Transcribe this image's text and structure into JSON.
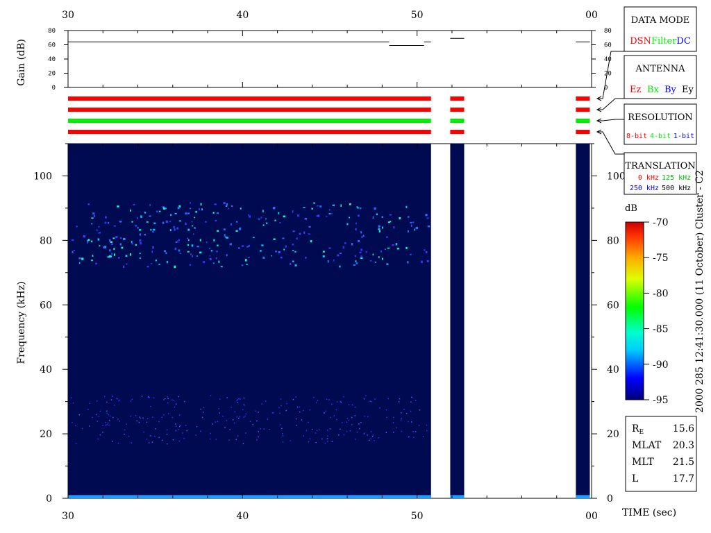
{
  "time_axis": {
    "ticks": [
      "30",
      "40",
      "50",
      "00"
    ],
    "label": "TIME (sec)"
  },
  "gain_panel": {
    "ylabel": "Gain (dB)",
    "ticks": [
      "0",
      "20",
      "40",
      "60",
      "80"
    ]
  },
  "legend": {
    "data_mode": {
      "title": "DATA MODE",
      "items": [
        {
          "label": "DSN",
          "color": "#ff0000"
        },
        {
          "label": "Filter",
          "color": "#00ee00"
        },
        {
          "label": "DC",
          "color": "#0000ff"
        }
      ]
    },
    "antenna": {
      "title": "ANTENNA",
      "items": [
        {
          "label": "Ez",
          "color": "#ff0000"
        },
        {
          "label": "Bx",
          "color": "#00ee00"
        },
        {
          "label": "By",
          "color": "#0000ff"
        },
        {
          "label": "Ey",
          "color": "#000000"
        }
      ]
    },
    "resolution": {
      "title": "RESOLUTION",
      "items": [
        {
          "label": "8-bit",
          "color": "#ff0000"
        },
        {
          "label": "4-bit",
          "color": "#00ee00"
        },
        {
          "label": "1-bit",
          "color": "#0000ff"
        }
      ]
    },
    "translation": {
      "title": "TRANSLATION",
      "items": [
        {
          "label": "0 kHz",
          "color": "#ff0000"
        },
        {
          "label": "125 kHz",
          "color": "#00ee00"
        },
        {
          "label": "250 kHz",
          "color": "#0000ff"
        },
        {
          "label": "500 kHz",
          "color": "#000000"
        }
      ]
    }
  },
  "spectrogram": {
    "ylabel": "Frequency (kHz)",
    "yticks": [
      "0",
      "20",
      "40",
      "60",
      "80",
      "100"
    ],
    "background": "#000a50"
  },
  "colorbar": {
    "unit": "dB",
    "ticks": [
      "-70",
      "-75",
      "-80",
      "-85",
      "-90",
      "-95"
    ]
  },
  "side_label": "2000 285 12:41:30.000 (11 October)  Cluster - C2",
  "orbit_info": [
    {
      "name": "R",
      "sub": "E",
      "value": "15.6"
    },
    {
      "name": "MLAT",
      "sub": "",
      "value": "20.3"
    },
    {
      "name": "MLT",
      "sub": "",
      "value": "21.5"
    },
    {
      "name": "L",
      "sub": "",
      "value": "17.7"
    }
  ],
  "chart_data": {
    "type": "heatmap",
    "x_range_sec": [
      30,
      60
    ],
    "y_range_khz": [
      0,
      110
    ],
    "color_range_db": [
      -95,
      -70
    ],
    "data_segments_sec": [
      [
        30,
        50.8
      ],
      [
        51.9,
        52.7
      ],
      [
        59.1,
        59.9
      ]
    ],
    "gain_db": [
      {
        "x": [
          30,
          48.4
        ],
        "y": 64
      },
      {
        "x": [
          48.4,
          50.4
        ],
        "y": 59
      },
      {
        "x": [
          50.4,
          50.8
        ],
        "y": 64
      },
      {
        "x": [
          51.9,
          52.7
        ],
        "y": 69
      },
      {
        "x": [
          59.1,
          59.9
        ],
        "y": 64
      }
    ],
    "mode_rows": [
      {
        "row": 1,
        "color": "#ff0000"
      },
      {
        "row": 2,
        "color": "#ff0000"
      },
      {
        "row": 3,
        "color": "#00ee00"
      },
      {
        "row": 4,
        "color": "#ff0000"
      }
    ],
    "emission_bands_khz": [
      [
        70,
        92
      ],
      [
        15,
        32
      ],
      [
        0,
        1
      ]
    ]
  }
}
